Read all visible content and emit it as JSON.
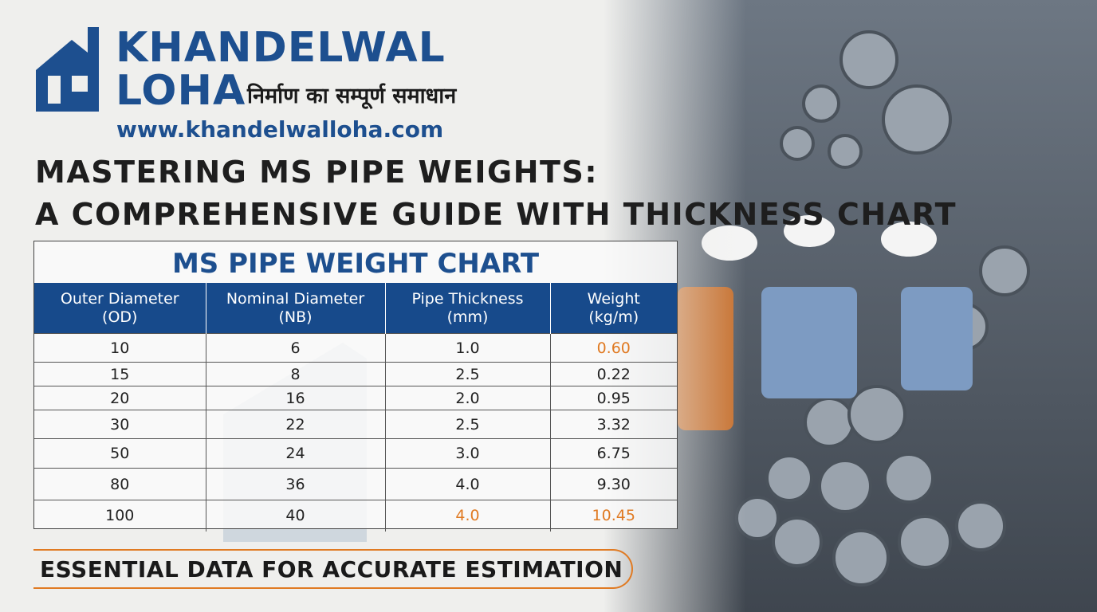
{
  "brand": {
    "name_line1": "KHANDELWAL",
    "name_line2": "LOHA",
    "tagline": "निर्माण का सम्पूर्ण समाधान",
    "url": "www.khandelwalloha.com"
  },
  "header": {
    "title_line1": "MASTERING MS PIPE WEIGHTS:",
    "title_line2": "A COMPREHENSIVE GUIDE WITH THICKNESS CHART"
  },
  "table": {
    "title": "MS PIPE WEIGHT CHART",
    "columns": [
      [
        "Outer Diameter",
        "(OD)"
      ],
      [
        "Nominal Diameter",
        "(NB)"
      ],
      [
        "Pipe Thickness",
        "(mm)"
      ],
      [
        "Weight",
        "(kg/m)"
      ]
    ],
    "rows": [
      [
        "10",
        "6",
        "1.0",
        "0.60"
      ],
      [
        "15",
        "8",
        "2.5",
        "0.22"
      ],
      [
        "20",
        "16",
        "2.0",
        "0.95"
      ],
      [
        "30",
        "22",
        "2.5",
        "3.32"
      ],
      [
        "50",
        "24",
        "3.0",
        "6.75"
      ],
      [
        "80",
        "36",
        "4.0",
        "9.30"
      ],
      [
        "100",
        "40",
        "4.0",
        "10.45"
      ]
    ]
  },
  "footer": {
    "text": "ESSENTIAL DATA FOR ACCURATE ESTIMATION"
  }
}
